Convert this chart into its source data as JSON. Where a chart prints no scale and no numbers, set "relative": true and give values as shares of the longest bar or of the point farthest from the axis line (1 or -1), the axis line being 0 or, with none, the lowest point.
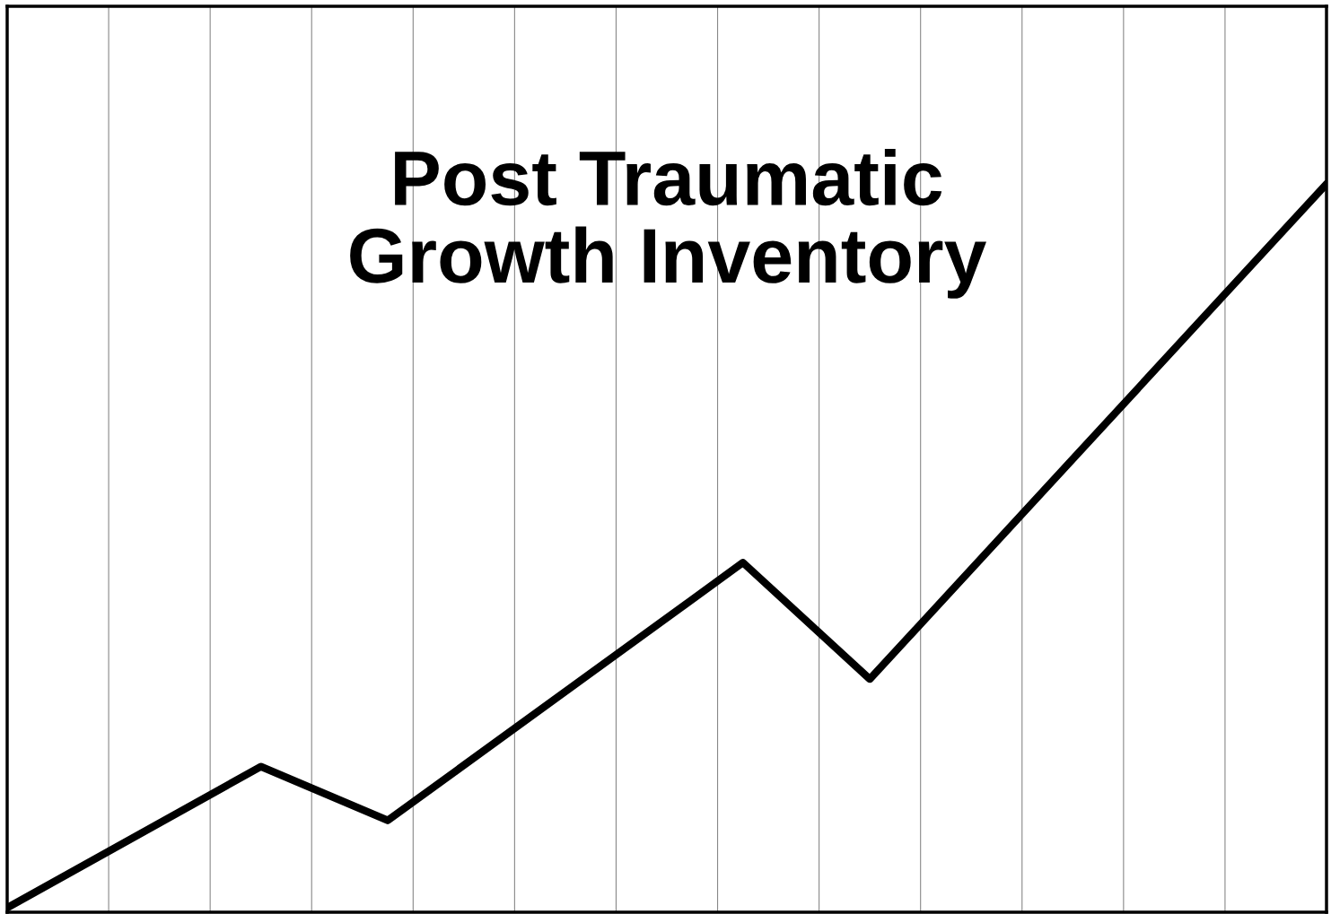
{
  "chart_data": {
    "type": "line",
    "title": "Post Traumatic\nGrowth Inventory",
    "relative": true,
    "categories": [
      null,
      null,
      null,
      null,
      null,
      null,
      null,
      null,
      null,
      null,
      null,
      null,
      null,
      null,
      null,
      null,
      null,
      null,
      null,
      null,
      null,
      null,
      null,
      null,
      null,
      null,
      null,
      null,
      null,
      null,
      null,
      null,
      null,
      null,
      null,
      null,
      null,
      null,
      null,
      null,
      null,
      null,
      null,
      null,
      null,
      null,
      null,
      null,
      null,
      null,
      null,
      null,
      null
    ],
    "series": [
      {
        "color": "#000000",
        "values": [
          0.006,
          null,
          null,
          null,
          null,
          null,
          null,
          null,
          null,
          null,
          0.2,
          null,
          null,
          null,
          null,
          0.126,
          null,
          null,
          null,
          null,
          null,
          null,
          null,
          null,
          null,
          null,
          null,
          null,
          null,
          0.48,
          null,
          null,
          null,
          null,
          0.32,
          null,
          null,
          null,
          null,
          null,
          null,
          null,
          null,
          null,
          null,
          null,
          null,
          null,
          null,
          null,
          null,
          null,
          1
        ]
      }
    ],
    "grid": "x",
    "marker": "none",
    "line_style": "solid"
  }
}
